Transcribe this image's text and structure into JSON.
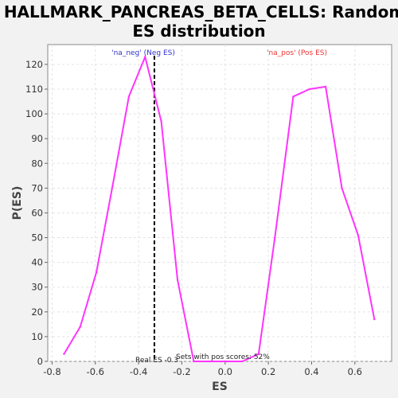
{
  "chart_data": {
    "type": "line",
    "title_lines": [
      "HALLMARK_PANCREAS_BETA_CELLS: Random",
      "ES distribution"
    ],
    "xlabel": "ES",
    "ylabel": "P(ES)",
    "xlim": [
      -0.82,
      0.77
    ],
    "ylim": [
      0,
      128
    ],
    "x_ticks": [
      -0.8,
      -0.6,
      -0.4,
      -0.2,
      0.0,
      0.2,
      0.4,
      0.6
    ],
    "x_tick_labels": [
      "-0.8",
      "-0.6",
      "-0.4",
      "-0.2",
      "0.0",
      "0.2",
      "0.4",
      "0.6"
    ],
    "y_ticks": [
      0,
      10,
      20,
      30,
      40,
      50,
      60,
      70,
      80,
      90,
      100,
      110,
      120
    ],
    "y_tick_labels": [
      "0",
      "10",
      "20",
      "30",
      "40",
      "50",
      "60",
      "70",
      "80",
      "90",
      "100",
      "110",
      "120"
    ],
    "grid": true,
    "series": [
      {
        "color": "#ff33ff",
        "x": [
          -0.745,
          -0.67,
          -0.595,
          -0.52,
          -0.445,
          -0.37,
          -0.295,
          -0.22,
          -0.145,
          -0.07,
          0.005,
          0.08,
          0.155,
          0.23,
          0.315,
          0.39,
          0.465,
          0.54,
          0.615,
          0.69
        ],
        "y": [
          3,
          14,
          36,
          71,
          107,
          123,
          97,
          33,
          0,
          0,
          0,
          0,
          3,
          50,
          107,
          110,
          111,
          70,
          51,
          17
        ]
      }
    ],
    "real_es_line": {
      "x": -0.327,
      "color": "#000000"
    },
    "annotations": {
      "neg_label": {
        "text": "'na_neg' (Neg ES)",
        "color": "#3333cc"
      },
      "pos_label": {
        "text": "'na_pos' (Pos ES)",
        "color": "#ee3333"
      },
      "real_es_text": "Real ES -0.3",
      "sets_pos_text": "Sets with pos scores: 52%"
    }
  }
}
